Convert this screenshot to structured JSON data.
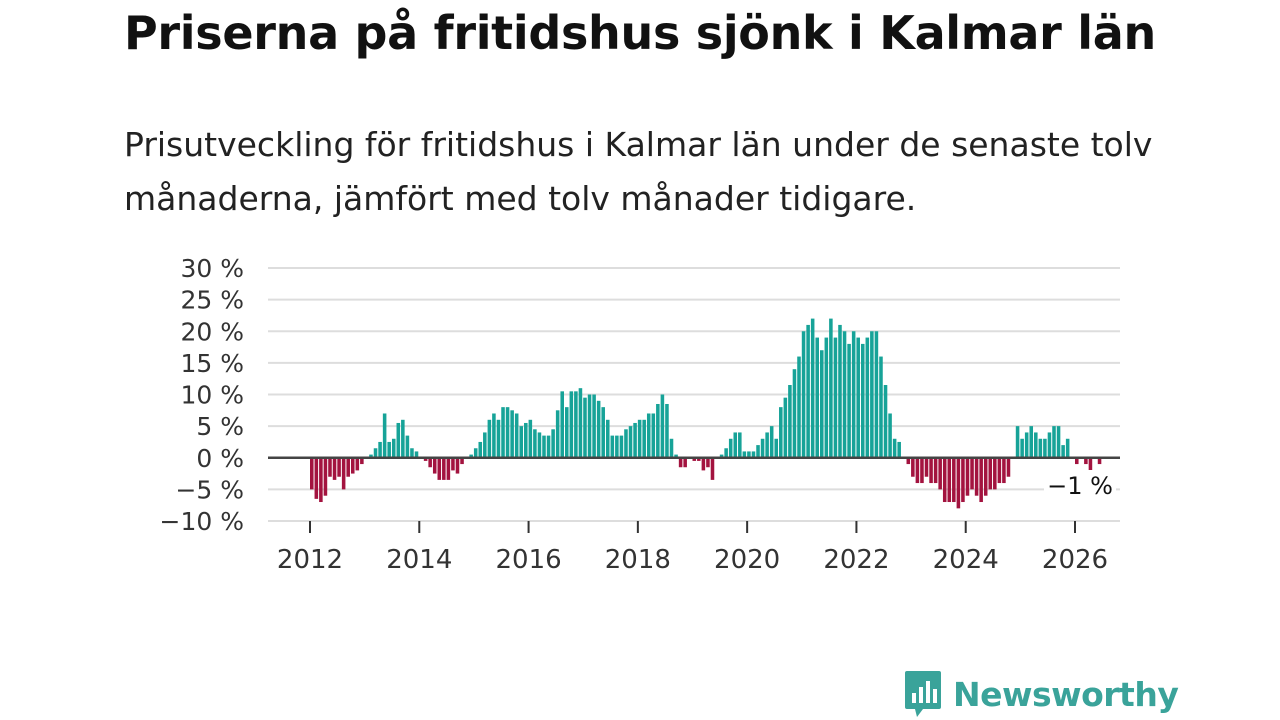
{
  "title": "Priserna på fritidshus sjönk i Kalmar län",
  "subtitle": "Prisutveckling för fritidshus i Kalmar län under de senaste tolv månaderna, jämfört med tolv månader tidigare.",
  "logo": {
    "text": "Newsworthy",
    "icon": "newsworthy-logo-icon",
    "color": "#3aa39a"
  },
  "colors": {
    "positive": "#17a398",
    "negative": "#a3133f",
    "grid": "#dddddd",
    "zero_line": "#444444"
  },
  "chart_data": {
    "type": "bar",
    "title": "Priserna på fritidshus sjönk i Kalmar län",
    "xlabel": "",
    "ylabel": "",
    "ylim": [
      -10,
      30
    ],
    "y_ticks": [
      -10,
      -5,
      0,
      5,
      10,
      15,
      20,
      25,
      30
    ],
    "y_tick_labels": [
      "−10 %",
      "−5 %",
      "0 %",
      "5 %",
      "10 %",
      "15 %",
      "20 %",
      "25 %",
      "30 %"
    ],
    "x_ticks": [
      2012,
      2014,
      2016,
      2018,
      2020,
      2022,
      2024,
      2026
    ],
    "x_tick_labels": [
      "2012",
      "2014",
      "2016",
      "2018",
      "2020",
      "2022",
      "2024",
      "2026"
    ],
    "start": "2012-01",
    "frequency": "monthly",
    "unit": "%",
    "grid": true,
    "values": [
      -5,
      -6.5,
      -7,
      -6,
      -3,
      -3.5,
      -3,
      -5,
      -3,
      -2.5,
      -2,
      -1,
      0,
      0.5,
      1.5,
      2.5,
      7,
      2.5,
      3,
      5.5,
      6,
      3.5,
      1.5,
      1,
      0,
      -0.5,
      -1.5,
      -2.5,
      -3.5,
      -3.5,
      -3.5,
      -2,
      -2.5,
      -1,
      0,
      0.5,
      1.5,
      2.5,
      4,
      6,
      7,
      6,
      8,
      8,
      7.5,
      7,
      5,
      5.5,
      6,
      4.5,
      4,
      3.5,
      3.5,
      4.5,
      7.5,
      10.5,
      8,
      10.5,
      10.5,
      11,
      9.5,
      10,
      10,
      9,
      8,
      6,
      3.5,
      3.5,
      3.5,
      4.5,
      5,
      5.5,
      6,
      6,
      7,
      7,
      8.5,
      10,
      8.5,
      3,
      0.5,
      -1.5,
      -1.5,
      0,
      -0.5,
      -0.5,
      -2,
      -1.5,
      -3.5,
      0,
      0.5,
      1.5,
      3,
      4,
      4,
      1,
      1,
      1,
      2,
      3,
      4,
      5,
      3,
      8,
      9.5,
      11.5,
      14,
      16,
      20,
      21,
      22,
      19,
      17,
      19,
      22,
      19,
      21,
      20,
      18,
      20,
      19,
      18,
      19,
      20,
      20,
      16,
      11.5,
      7,
      3,
      2.5,
      0,
      -1,
      -3,
      -4,
      -4,
      -3,
      -4,
      -4,
      -5,
      -7,
      -7,
      -7,
      -8,
      -7,
      -6,
      -5,
      -6,
      -7,
      -6,
      -5,
      -5,
      -4,
      -4,
      -3,
      0,
      5,
      3,
      4,
      5,
      4,
      3,
      3,
      4,
      5,
      5,
      2,
      3,
      0,
      -1,
      0,
      -1,
      -2,
      0,
      -1
    ],
    "annotations": [
      {
        "label": "−1 %",
        "target": "last-bar"
      }
    ]
  }
}
